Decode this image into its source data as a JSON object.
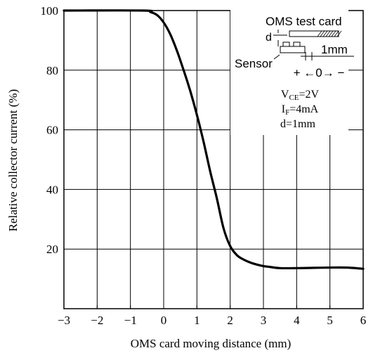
{
  "chart_data": {
    "type": "line",
    "xlabel": "OMS card moving distance  (mm)",
    "ylabel": "Relative collector current (%)",
    "xlim": [
      -3,
      6
    ],
    "ylim": [
      0,
      100
    ],
    "x_ticks": [
      "−3",
      "−2",
      "−1",
      "0",
      "1",
      "2",
      "3",
      "4",
      "5",
      "6"
    ],
    "y_ticks": [
      "20",
      "40",
      "60",
      "80",
      "100"
    ],
    "grid": true,
    "series": [
      {
        "x": [
          -3,
          -0.6,
          -0.4,
          -0.2,
          0,
          0.2,
          0.4,
          0.6,
          0.8,
          1.0,
          1.2,
          1.4,
          1.6,
          1.8,
          2.0,
          2.2,
          2.4,
          2.6,
          2.8,
          3.0,
          3.2,
          3.5,
          4.0,
          4.5,
          5.0,
          5.5,
          6.0
        ],
        "y": [
          100,
          100,
          99.5,
          98.5,
          96,
          92,
          86.5,
          80,
          73,
          65,
          56,
          46,
          37,
          27,
          21,
          18,
          16.5,
          15.5,
          14.8,
          14.3,
          14,
          13.6,
          13.6,
          13.7,
          13.8,
          13.8,
          13.4
        ]
      }
    ]
  },
  "inset": {
    "card_label": "OMS test card",
    "d_label": "d",
    "sensor_label": "Sensor",
    "mm_label": "1mm",
    "direction_label": "+ ←0→ −",
    "conditions": [
      {
        "symbol": "V",
        "subscript": "CE",
        "value": "=2V"
      },
      {
        "symbol": "I",
        "subscript": "F",
        "value": "=4mA"
      },
      {
        "symbol": "d",
        "subscript": "",
        "value": "=1mm"
      }
    ]
  }
}
